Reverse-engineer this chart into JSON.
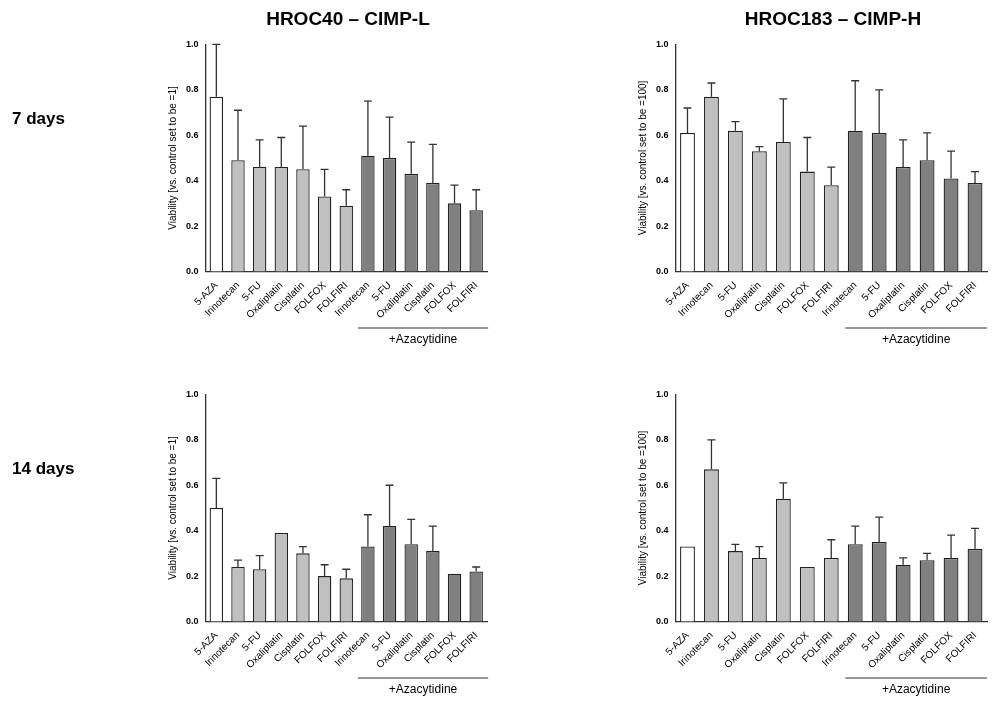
{
  "chart_data": [
    {
      "type": "bar",
      "title": "HROC40 – CIMP-L",
      "ylabel": "Viability [vs. control set to be =1]",
      "categories": [
        "5-AZA",
        "Irinotecan",
        "5-FU",
        "Oxaliplatin",
        "Cisplatin",
        "FOLFOX",
        "FOLFIRI",
        "Irinotecan",
        "5-FU",
        "Oxaliplatin",
        "Cisplatin",
        "FOLFOX",
        "FOLFIRI"
      ],
      "values": [
        0.77,
        0.49,
        0.46,
        0.46,
        0.45,
        0.33,
        0.29,
        0.51,
        0.5,
        0.43,
        0.39,
        0.3,
        0.27
      ],
      "errors": [
        [
          0.77,
          1.0
        ],
        [
          0.49,
          0.71
        ],
        [
          0.46,
          0.58
        ],
        [
          0.46,
          0.59
        ],
        [
          0.45,
          0.64
        ],
        [
          0.33,
          0.45
        ],
        [
          0.29,
          0.36
        ],
        [
          0.51,
          0.75
        ],
        [
          0.5,
          0.68
        ],
        [
          0.43,
          0.57
        ],
        [
          0.39,
          0.56
        ],
        [
          0.3,
          0.38
        ],
        [
          0.27,
          0.36
        ]
      ],
      "colors": [
        "#ffffff",
        "#c0c0c0",
        "#c0c0c0",
        "#c0c0c0",
        "#c0c0c0",
        "#c0c0c0",
        "#c0c0c0",
        "#808080",
        "#808080",
        "#808080",
        "#808080",
        "#808080",
        "#808080"
      ],
      "ylim": [
        0,
        1
      ],
      "yticks": [
        "0.0",
        0.2,
        0.4,
        0.6,
        0.8,
        "1.0"
      ],
      "grid": false,
      "legend": false,
      "annotations": [
        "+Azacytidine",
        "7 days"
      ]
    },
    {
      "type": "bar",
      "title": "HROC183 – CIMP-H",
      "ylabel": "Viability [vs. control set to be =100]",
      "categories": [
        "5-AZA",
        "Irinotecan",
        "5-FU",
        "Oxaliplatin",
        "Cisplatin",
        "FOLFOX",
        "FOLFIRI",
        "Irinotecan",
        "5-FU",
        "Oxaliplatin",
        "Cisplatin",
        "FOLFOX",
        "FOLFIRI"
      ],
      "values": [
        0.61,
        0.77,
        0.62,
        0.53,
        0.57,
        0.44,
        0.38,
        0.62,
        0.61,
        0.46,
        0.49,
        0.41,
        0.39
      ],
      "errors": [
        [
          0.61,
          0.72
        ],
        [
          0.77,
          0.83
        ],
        [
          0.62,
          0.66
        ],
        [
          0.53,
          0.55
        ],
        [
          0.57,
          0.76
        ],
        [
          0.44,
          0.59
        ],
        [
          0.38,
          0.46
        ],
        [
          0.62,
          0.84
        ],
        [
          0.61,
          0.8
        ],
        [
          0.46,
          0.58
        ],
        [
          0.49,
          0.61
        ],
        [
          0.41,
          0.53
        ],
        [
          0.39,
          0.44
        ]
      ],
      "colors": [
        "#ffffff",
        "#c0c0c0",
        "#c0c0c0",
        "#c0c0c0",
        "#c0c0c0",
        "#c0c0c0",
        "#c0c0c0",
        "#808080",
        "#808080",
        "#808080",
        "#808080",
        "#808080",
        "#808080"
      ],
      "ylim": [
        0,
        1
      ],
      "yticks": [
        "0.0",
        0.2,
        0.4,
        0.6,
        0.8,
        "1.0"
      ],
      "grid": false,
      "legend": false,
      "annotations": [
        "+Azacytidine"
      ]
    },
    {
      "type": "bar",
      "ylabel": "Viability [vs. control set to be =1]",
      "categories": [
        "5-AZA",
        "Irinotecan",
        "5-FU",
        "Oxaliplatin",
        "Cisplatin",
        "FOLFOX",
        "FOLFIRI",
        "Irinotecan",
        "5-FU",
        "Oxaliplatin",
        "Cisplatin",
        "FOLFOX",
        "FOLFIRI"
      ],
      "values": [
        0.5,
        0.24,
        0.23,
        0.39,
        0.3,
        0.2,
        0.19,
        0.33,
        0.42,
        0.34,
        0.31,
        0.21,
        0.22
      ],
      "errors": [
        [
          0.5,
          0.63
        ],
        [
          0.24,
          0.27
        ],
        [
          0.23,
          0.29
        ],
        null,
        [
          0.3,
          0.33
        ],
        [
          0.2,
          0.25
        ],
        [
          0.19,
          0.23
        ],
        [
          0.33,
          0.47
        ],
        [
          0.42,
          0.6
        ],
        [
          0.34,
          0.45
        ],
        [
          0.31,
          0.42
        ],
        null,
        [
          0.22,
          0.24
        ]
      ],
      "colors": [
        "#ffffff",
        "#c0c0c0",
        "#c0c0c0",
        "#c0c0c0",
        "#c0c0c0",
        "#c0c0c0",
        "#c0c0c0",
        "#808080",
        "#808080",
        "#808080",
        "#808080",
        "#808080",
        "#808080"
      ],
      "ylim": [
        0,
        1
      ],
      "yticks": [
        "0.0",
        0.2,
        0.4,
        0.6,
        0.8,
        "1.0"
      ],
      "grid": false,
      "legend": false,
      "annotations": [
        "+Azacytidine",
        "14 days"
      ]
    },
    {
      "type": "bar",
      "ylabel": "Viability [vs. control set to be =100]",
      "categories": [
        "5-AZA",
        "Irinotecan",
        "5-FU",
        "Oxaliplatin",
        "Cisplatin",
        "FOLFOX",
        "FOLFIRI",
        "Irinotecan",
        "5-FU",
        "Oxaliplatin",
        "Cisplatin",
        "FOLFOX",
        "FOLFIRI"
      ],
      "values": [
        0.33,
        0.67,
        0.31,
        0.28,
        0.54,
        0.24,
        0.28,
        0.34,
        0.35,
        0.25,
        0.27,
        0.28,
        0.32
      ],
      "errors": [
        null,
        [
          0.67,
          0.8
        ],
        [
          0.31,
          0.34
        ],
        [
          0.28,
          0.33
        ],
        [
          0.54,
          0.61
        ],
        null,
        [
          0.28,
          0.36
        ],
        [
          0.34,
          0.42
        ],
        [
          0.35,
          0.46
        ],
        [
          0.25,
          0.28
        ],
        [
          0.27,
          0.3
        ],
        [
          0.28,
          0.38
        ],
        [
          0.32,
          0.41
        ]
      ],
      "colors": [
        "#ffffff",
        "#c0c0c0",
        "#c0c0c0",
        "#c0c0c0",
        "#c0c0c0",
        "#c0c0c0",
        "#c0c0c0",
        "#808080",
        "#808080",
        "#808080",
        "#808080",
        "#808080",
        "#808080"
      ],
      "ylim": [
        0,
        1
      ],
      "yticks": [
        "0.0",
        0.2,
        0.4,
        0.6,
        0.8,
        "1.0"
      ],
      "grid": false,
      "legend": false,
      "annotations": [
        "+Azacytidine"
      ]
    }
  ]
}
